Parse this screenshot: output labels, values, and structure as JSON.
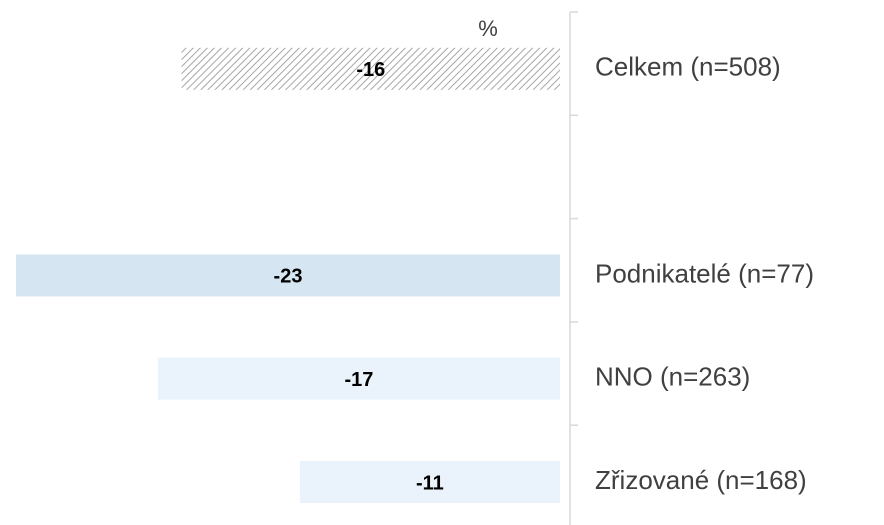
{
  "chart_data": {
    "type": "hbar",
    "axis_label": "%",
    "categories": [
      "Celkem (n=508)",
      null,
      "Podnikatelé (n=77)",
      "NNO (n=263)",
      "Zřizované (n=168)"
    ],
    "values": [
      -16,
      null,
      -23,
      -17,
      -11
    ],
    "colors": [
      "#a6a6a6",
      null,
      "#d5e5f2",
      "#eaf3fb",
      "#eaf3fb"
    ],
    "hatched": [
      true,
      false,
      false,
      false,
      false
    ],
    "xlim": [
      -23,
      0
    ]
  }
}
